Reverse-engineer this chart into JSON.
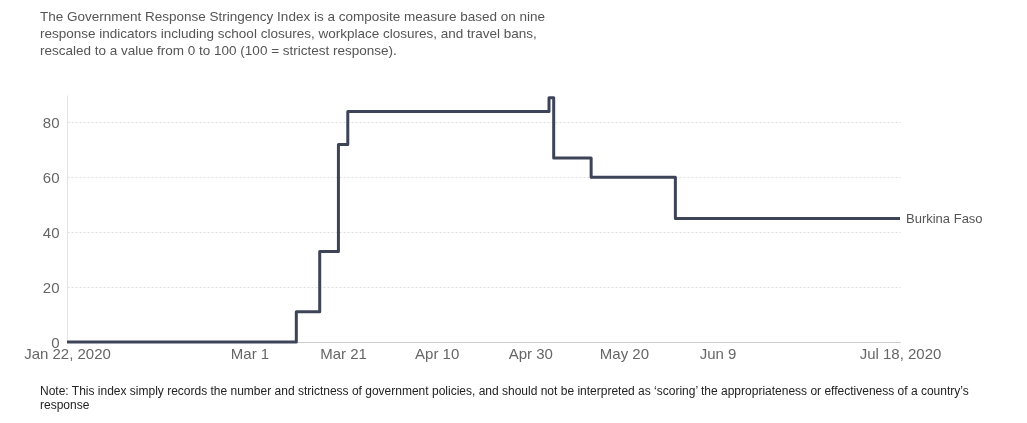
{
  "chart_data": {
    "type": "step",
    "title": "The Government Response Stringency Index is a composite measure based on nine response indicators including school closures, workplace closures, and travel bans, rescaled to a value from 0 to 100 (100 = strictest response).",
    "x": [
      "2020-01-22",
      "2020-03-11",
      "2020-03-16",
      "2020-03-20",
      "2020-03-22",
      "2020-05-04",
      "2020-05-05",
      "2020-05-13",
      "2020-05-31",
      "2020-07-18"
    ],
    "series": [
      {
        "name": "Burkina Faso",
        "color": "#3d4458",
        "values": [
          0,
          11,
          33,
          72,
          84,
          89,
          67,
          60,
          45,
          45
        ]
      }
    ],
    "xlim": [
      "2020-01-22",
      "2020-07-18"
    ],
    "xticks": [
      {
        "value": "2020-01-22",
        "label": "Jan 22, 2020"
      },
      {
        "value": "2020-03-01",
        "label": "Mar 1"
      },
      {
        "value": "2020-03-21",
        "label": "Mar 21"
      },
      {
        "value": "2020-04-10",
        "label": "Apr 10"
      },
      {
        "value": "2020-04-30",
        "label": "Apr 30"
      },
      {
        "value": "2020-05-20",
        "label": "May 20"
      },
      {
        "value": "2020-06-09",
        "label": "Jun 9"
      },
      {
        "value": "2020-07-18",
        "label": "Jul 18, 2020"
      }
    ],
    "ylim": [
      0,
      90
    ],
    "yticks": [
      0,
      20,
      40,
      60,
      80
    ],
    "grid": "y",
    "legend": false,
    "annotations": [
      "Note: This index simply records the number and strictness of government policies, and should not be interpreted as ‘scoring’ the appropriateness or effectiveness of a country’s response"
    ]
  }
}
